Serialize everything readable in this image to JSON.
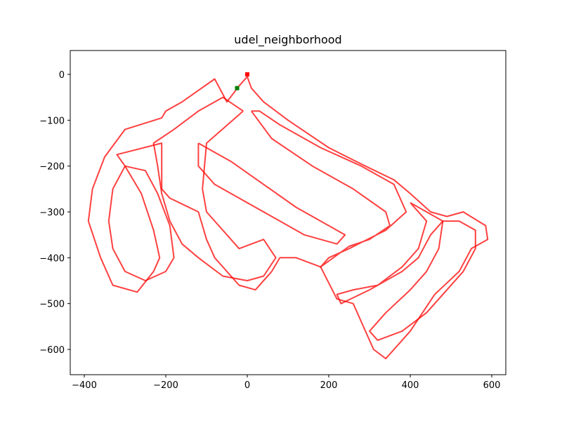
{
  "chart_data": {
    "type": "line",
    "title": "udel_neighborhood",
    "xlabel": "",
    "ylabel": "",
    "xlim": [
      -400,
      600
    ],
    "ylim": [
      -600,
      0
    ],
    "x_ticks": [
      -400,
      -200,
      0,
      200,
      400,
      600
    ],
    "y_ticks": [
      0,
      -100,
      -200,
      -300,
      -400,
      -500,
      -600
    ],
    "x_tick_labels": [
      "−400",
      "−200",
      "0",
      "200",
      "400",
      "600"
    ],
    "y_tick_labels": [
      "0",
      "−100",
      "−200",
      "−300",
      "−400",
      "−500",
      "−600"
    ],
    "grid": false,
    "series": [
      {
        "color": "#ff0000",
        "points": [
          [
            0,
            -5
          ],
          [
            -20,
            -25
          ],
          [
            -50,
            -60
          ],
          [
            -80,
            -10
          ],
          [
            -160,
            -60
          ],
          [
            -200,
            -80
          ],
          [
            -210,
            -95
          ],
          [
            -300,
            -120
          ],
          [
            -350,
            -180
          ],
          [
            -380,
            -250
          ],
          [
            -390,
            -320
          ],
          [
            -360,
            -400
          ],
          [
            -330,
            -460
          ],
          [
            -270,
            -475
          ],
          [
            -230,
            -430
          ],
          [
            -215,
            -400
          ],
          [
            -230,
            -340
          ],
          [
            -260,
            -260
          ],
          [
            -300,
            -200
          ],
          [
            -320,
            -175
          ],
          [
            -210,
            -150
          ],
          [
            -210,
            -250
          ],
          [
            -190,
            -270
          ],
          [
            -120,
            -300
          ],
          [
            -100,
            -360
          ],
          [
            -80,
            -400
          ],
          [
            -20,
            -460
          ],
          [
            20,
            -470
          ],
          [
            60,
            -430
          ],
          [
            80,
            -400
          ],
          [
            120,
            -400
          ],
          [
            180,
            -420
          ],
          [
            220,
            -490
          ],
          [
            260,
            -500
          ],
          [
            310,
            -600
          ],
          [
            340,
            -620
          ],
          [
            400,
            -560
          ],
          [
            460,
            -480
          ],
          [
            520,
            -430
          ],
          [
            550,
            -380
          ],
          [
            590,
            -360
          ],
          [
            585,
            -330
          ],
          [
            530,
            -300
          ],
          [
            490,
            -310
          ],
          [
            450,
            -300
          ],
          [
            400,
            -260
          ],
          [
            360,
            -230
          ],
          [
            290,
            -200
          ],
          [
            200,
            -160
          ],
          [
            100,
            -100
          ],
          [
            40,
            -60
          ],
          [
            10,
            -30
          ],
          [
            0,
            -5
          ]
        ]
      },
      {
        "color": "#ff0000",
        "points": [
          [
            -10,
            -80
          ],
          [
            -100,
            -150
          ],
          [
            -110,
            -250
          ],
          [
            -100,
            -300
          ],
          [
            -20,
            -380
          ],
          [
            40,
            -360
          ],
          [
            70,
            -400
          ],
          [
            40,
            -440
          ],
          [
            0,
            -450
          ],
          [
            -60,
            -440
          ],
          [
            -120,
            -400
          ],
          [
            -160,
            -370
          ],
          [
            -190,
            -320
          ],
          [
            -210,
            -260
          ],
          [
            -220,
            -200
          ],
          [
            -230,
            -150
          ],
          [
            -180,
            -120
          ],
          [
            -120,
            -80
          ],
          [
            -60,
            -50
          ],
          [
            -10,
            -80
          ]
        ]
      },
      {
        "color": "#ff0000",
        "points": [
          [
            10,
            -80
          ],
          [
            60,
            -140
          ],
          [
            160,
            -200
          ],
          [
            260,
            -250
          ],
          [
            340,
            -300
          ],
          [
            350,
            -330
          ],
          [
            300,
            -360
          ],
          [
            250,
            -375
          ],
          [
            180,
            -420
          ],
          [
            200,
            -400
          ],
          [
            250,
            -380
          ],
          [
            340,
            -340
          ],
          [
            390,
            -300
          ],
          [
            360,
            -240
          ],
          [
            280,
            -200
          ],
          [
            180,
            -160
          ],
          [
            80,
            -110
          ],
          [
            30,
            -80
          ],
          [
            10,
            -80
          ]
        ]
      },
      {
        "color": "#ff0000",
        "points": [
          [
            -120,
            -150
          ],
          [
            -80,
            -170
          ],
          [
            -40,
            -190
          ],
          [
            40,
            -240
          ],
          [
            120,
            -290
          ],
          [
            200,
            -330
          ],
          [
            240,
            -350
          ],
          [
            220,
            -370
          ],
          [
            140,
            -350
          ],
          [
            60,
            -310
          ],
          [
            -20,
            -270
          ],
          [
            -80,
            -240
          ],
          [
            -120,
            -200
          ],
          [
            -120,
            -150
          ]
        ]
      },
      {
        "color": "#ff0000",
        "points": [
          [
            400,
            -280
          ],
          [
            440,
            -320
          ],
          [
            420,
            -380
          ],
          [
            380,
            -420
          ],
          [
            320,
            -460
          ],
          [
            260,
            -470
          ],
          [
            220,
            -480
          ],
          [
            230,
            -500
          ],
          [
            300,
            -470
          ],
          [
            380,
            -430
          ],
          [
            420,
            -400
          ],
          [
            450,
            -350
          ],
          [
            480,
            -320
          ],
          [
            440,
            -300
          ],
          [
            400,
            -280
          ]
        ]
      },
      {
        "color": "#ff0000",
        "points": [
          [
            480,
            -320
          ],
          [
            470,
            -380
          ],
          [
            440,
            -430
          ],
          [
            400,
            -470
          ],
          [
            340,
            -520
          ],
          [
            300,
            -560
          ],
          [
            320,
            -580
          ],
          [
            380,
            -560
          ],
          [
            440,
            -520
          ],
          [
            490,
            -470
          ],
          [
            530,
            -430
          ],
          [
            560,
            -380
          ],
          [
            560,
            -340
          ],
          [
            520,
            -320
          ],
          [
            480,
            -320
          ]
        ]
      },
      {
        "color": "#ff0000",
        "points": [
          [
            -300,
            -200
          ],
          [
            -330,
            -250
          ],
          [
            -340,
            -320
          ],
          [
            -330,
            -380
          ],
          [
            -300,
            -430
          ],
          [
            -250,
            -450
          ],
          [
            -200,
            -430
          ],
          [
            -180,
            -400
          ],
          [
            -190,
            -330
          ],
          [
            -220,
            -260
          ],
          [
            -250,
            -210
          ],
          [
            -300,
            -200
          ]
        ]
      }
    ],
    "markers": [
      {
        "shape": "square",
        "color": "#008000",
        "x": -25,
        "y": -30
      },
      {
        "shape": "square",
        "color": "#ff0000",
        "x": 0,
        "y": 0
      }
    ]
  }
}
